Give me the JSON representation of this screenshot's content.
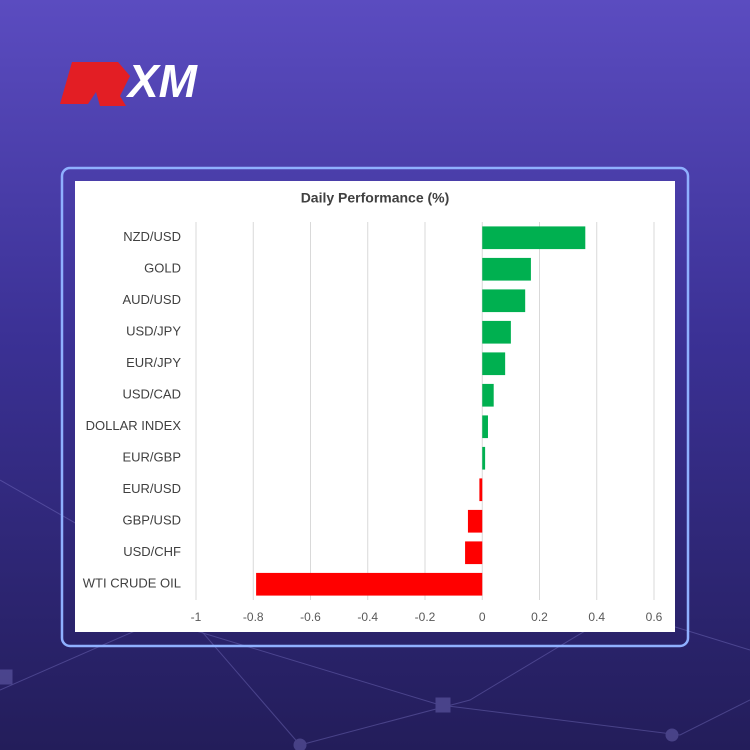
{
  "brand": {
    "logo": "XM"
  },
  "chart_data": {
    "type": "bar",
    "orientation": "horizontal",
    "title": "Daily Performance (%)",
    "categories": [
      "NZD/USD",
      "GOLD",
      "AUD/USD",
      "USD/JPY",
      "EUR/JPY",
      "USD/CAD",
      "DOLLAR INDEX",
      "EUR/GBP",
      "EUR/USD",
      "GBP/USD",
      "USD/CHF",
      "WTI CRUDE OIL"
    ],
    "values": [
      0.36,
      0.17,
      0.15,
      0.1,
      0.08,
      0.04,
      0.02,
      0.01,
      -0.01,
      -0.05,
      -0.06,
      -0.79
    ],
    "positive_color": "#00b050",
    "negative_color": "#ff0000",
    "xlim": [
      -1,
      0.6
    ],
    "xticks": [
      -1,
      -0.8,
      -0.6,
      -0.4,
      -0.2,
      0,
      0.2,
      0.4,
      0.6
    ],
    "grid": true
  }
}
